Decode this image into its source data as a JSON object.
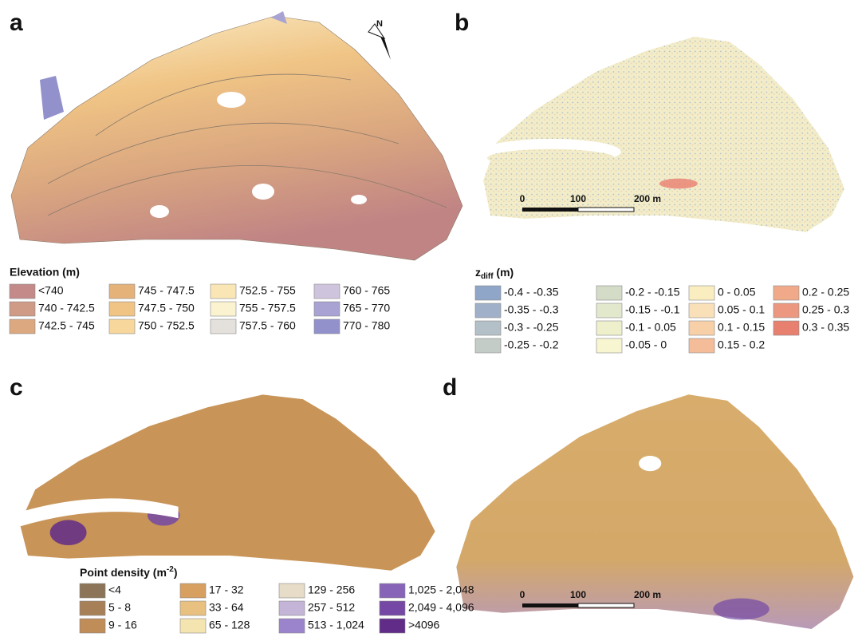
{
  "north": "N",
  "panels": [
    {
      "letter": "a",
      "legend": {
        "title": "Elevation (m)",
        "items": [
          {
            "label": "<740",
            "color": "#c48a8a"
          },
          {
            "label": "740 - 742.5",
            "color": "#cf9a86"
          },
          {
            "label": "742.5 - 745",
            "color": "#dba880"
          },
          {
            "label": "745 - 747.5",
            "color": "#e5b27a"
          },
          {
            "label": "747.5 - 750",
            "color": "#f0c485"
          },
          {
            "label": "750 - 752.5",
            "color": "#f7d79c"
          },
          {
            "label": "752.5 - 755",
            "color": "#fae6b4"
          },
          {
            "label": "755 - 757.5",
            "color": "#fbf3cf"
          },
          {
            "label": "757.5 - 760",
            "color": "#e4e0dc"
          },
          {
            "label": "760 - 765",
            "color": "#cfc4de"
          },
          {
            "label": "765 - 770",
            "color": "#a9a3d4"
          },
          {
            "label": "770 - 780",
            "color": "#9291cc"
          }
        ]
      }
    },
    {
      "letter": "b",
      "scale": [
        "0",
        "100",
        "200 m"
      ],
      "legend": {
        "title": {
          "main": "z",
          "sub": "diff",
          "unit": " (m)"
        },
        "items": [
          {
            "label": "-0.4 - -0.35",
            "color": "#8fa6c8"
          },
          {
            "label": "-0.35 - -0.3",
            "color": "#a0b0c8"
          },
          {
            "label": "-0.3 - -0.25",
            "color": "#b4c0c8"
          },
          {
            "label": "-0.25 - -0.2",
            "color": "#c4ccc8"
          },
          {
            "label": "-0.2 - -0.15",
            "color": "#d4dcc8"
          },
          {
            "label": "-0.15 - -0.1",
            "color": "#e2e8cc"
          },
          {
            "label": "-0.1 - 0.05",
            "color": "#eef0cc"
          },
          {
            "label": "-0.05 - 0",
            "color": "#f8f6d0"
          },
          {
            "label": "0 - 0.05",
            "color": "#faeec0"
          },
          {
            "label": "0.05 - 0.1",
            "color": "#fae0b8"
          },
          {
            "label": "0.1 - 0.15",
            "color": "#f8d0a8"
          },
          {
            "label": "0.15 - 0.2",
            "color": "#f4bc98"
          },
          {
            "label": "0.2 - 0.25",
            "color": "#f0aa8a"
          },
          {
            "label": "0.25 - 0.3",
            "color": "#ec9880"
          },
          {
            "label": "0.3 - 0.35",
            "color": "#e88070"
          }
        ]
      }
    },
    {
      "letter": "c",
      "legend": {
        "title": {
          "main": "Point density (m",
          "sup": "-2",
          "end": ")"
        },
        "items": [
          {
            "label": "<4",
            "color": "#8c7458"
          },
          {
            "label": "5 - 8",
            "color": "#a88058"
          },
          {
            "label": "9 - 16",
            "color": "#c08c58"
          },
          {
            "label": "17 - 32",
            "color": "#d8a060"
          },
          {
            "label": "33 - 64",
            "color": "#e8c080"
          },
          {
            "label": "65 - 128",
            "color": "#f4e4b0"
          },
          {
            "label": "129 - 256",
            "color": "#e6dcc8"
          },
          {
            "label": "257 - 512",
            "color": "#c4b4d8"
          },
          {
            "label": "513 - 1,024",
            "color": "#9c84cc"
          },
          {
            "label": "1,025 - 2,048",
            "color": "#8864b8"
          },
          {
            "label": "2,049 - 4,096",
            "color": "#7448a4"
          },
          {
            "label": ">4096",
            "color": "#602c88"
          }
        ]
      }
    },
    {
      "letter": "d",
      "scale": [
        "0",
        "100",
        "200 m"
      ]
    }
  ]
}
